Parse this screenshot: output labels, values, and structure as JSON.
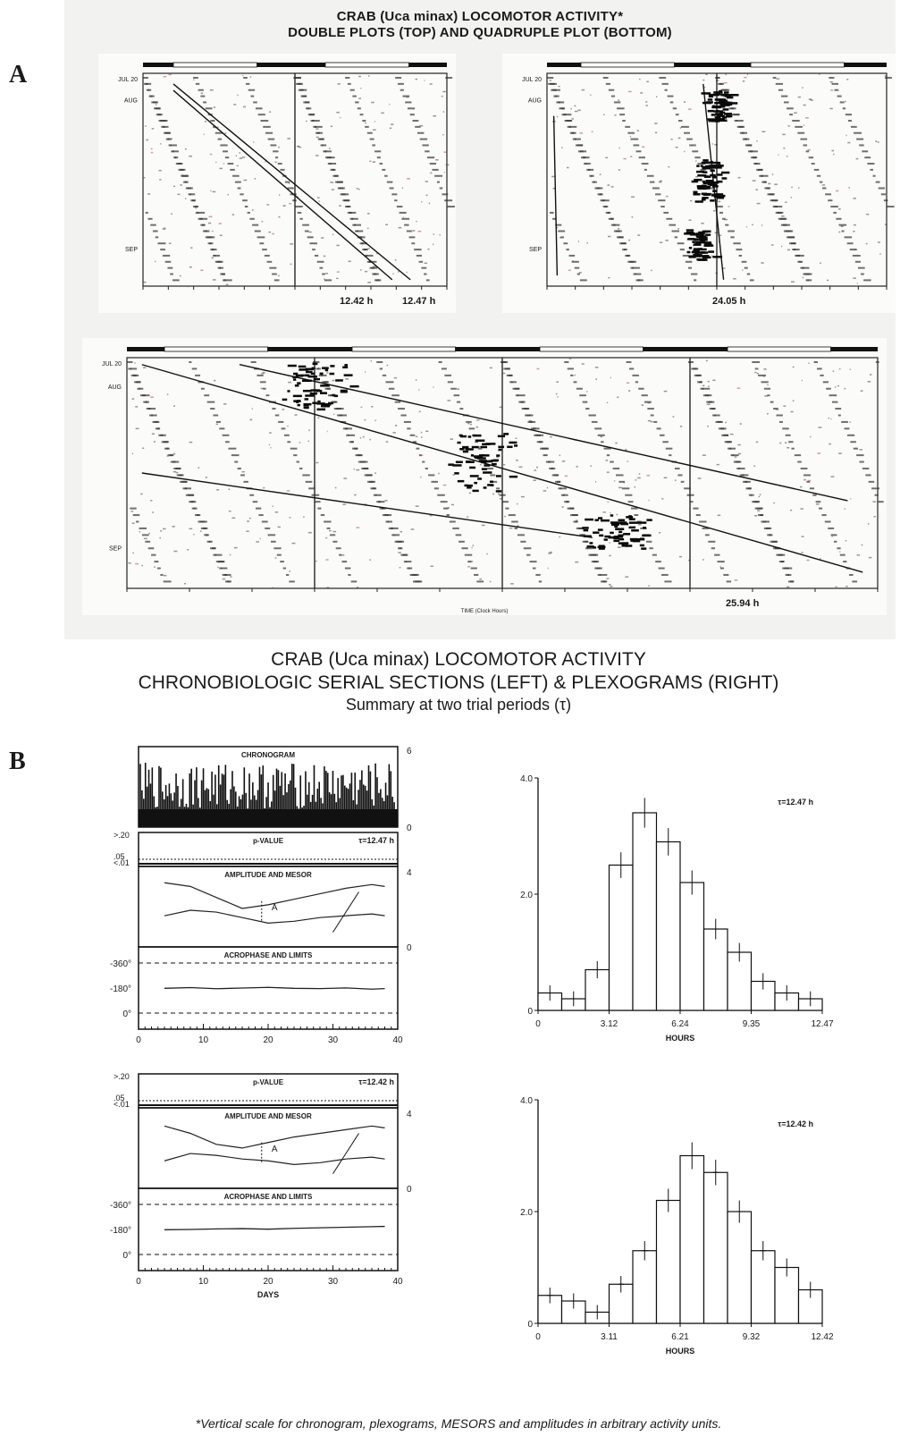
{
  "panel_labels": {
    "a": "A",
    "b": "B"
  },
  "part_a": {
    "title_line1": "CRAB (Uca minax) LOCOMOTOR ACTIVITY*",
    "title_line2": "DOUBLE PLOTS (TOP) AND QUADRUPLE PLOT (BOTTOM)",
    "x_axis_label": "TIME (Clock Hours)",
    "y_tick_labels": [
      "JUL 20",
      "AUG",
      "SEP"
    ],
    "period_labels": {
      "plot1_a": "12.42 h",
      "plot1_b": "12.47 h",
      "plot2": "24.05 h",
      "plot3": "25.94 h"
    }
  },
  "part_b": {
    "title_line1": "CRAB (Uca minax) LOCOMOTOR ACTIVITY",
    "title_line2": "CHRONOBIOLOGIC SERIAL SECTIONS (LEFT) & PLEXOGRAMS (RIGHT)",
    "title_line3": "Summary at two trial periods (τ)"
  },
  "footnote": "*Vertical scale for chronogram, plexograms, MESORS and amplitudes in arbitrary activity units.",
  "chart_data": [
    {
      "type": "line",
      "name": "serial section τ=12.47 h",
      "title": "",
      "panels": {
        "chronogram": {
          "label": "CHRONOGRAM",
          "ylim": [
            0,
            6
          ],
          "right_ticks": [
            "6",
            "0"
          ]
        },
        "p_value": {
          "label": "p-VALUE",
          "tau_label": "τ=12.47 h",
          "left_ticks": [
            ">.20",
            ".05",
            "<.01"
          ]
        },
        "amplitude_mesor": {
          "label": "AMPLITUDE AND MESOR",
          "ylim": [
            0,
            4
          ],
          "right_ticks": [
            "4",
            "0"
          ],
          "annotation": "A",
          "days": [
            4,
            8,
            12,
            16,
            20,
            24,
            28,
            32,
            36,
            38
          ],
          "mesor_upper": [
            3.5,
            3.3,
            2.7,
            2.1,
            2.3,
            2.6,
            2.9,
            3.2,
            3.4,
            3.3
          ],
          "amplitude_lower": [
            1.7,
            2.0,
            1.9,
            1.6,
            1.3,
            1.4,
            1.6,
            1.7,
            1.8,
            1.7
          ]
        },
        "acrophase": {
          "label": "ACROPHASE AND LIMITS",
          "ticks": [
            "-360°",
            "-180°",
            "0°"
          ],
          "days": [
            4,
            8,
            12,
            16,
            20,
            24,
            28,
            32,
            36,
            38
          ],
          "acrophase_deg": [
            -178,
            -183,
            -175,
            -180,
            -185,
            -178,
            -176,
            -181,
            -172,
            -176
          ]
        }
      },
      "x_ticks": [
        0,
        10,
        20,
        30,
        40
      ],
      "xlabel": "DAYS"
    },
    {
      "type": "bar",
      "name": "plexogram τ=12.47 h",
      "tau_label": "τ=12.47 h",
      "x_tick_labels": [
        "0",
        "3.12",
        "6.24",
        "9.35",
        "12.47"
      ],
      "xlabel": "HOURS",
      "y_tick_labels": [
        "0",
        "2.0",
        "4.0"
      ],
      "ylim": [
        0,
        4
      ],
      "values": [
        0.3,
        0.2,
        0.7,
        2.5,
        3.4,
        2.9,
        2.2,
        1.4,
        1.0,
        0.5,
        0.3,
        0.2
      ]
    },
    {
      "type": "line",
      "name": "serial section τ=12.42 h",
      "title": "",
      "panels": {
        "p_value": {
          "label": "p-VALUE",
          "tau_label": "τ=12.42 h",
          "left_ticks": [
            ">.20",
            ".05",
            "<.01"
          ]
        },
        "amplitude_mesor": {
          "label": "AMPLITUDE AND MESOR",
          "ylim": [
            0,
            4
          ],
          "right_ticks": [
            "4",
            "0"
          ],
          "annotation": "A",
          "days": [
            4,
            8,
            12,
            16,
            20,
            24,
            28,
            32,
            36,
            38
          ],
          "mesor_upper": [
            3.4,
            3.0,
            2.4,
            2.2,
            2.5,
            2.8,
            3.0,
            3.2,
            3.4,
            3.3
          ],
          "amplitude_lower": [
            1.5,
            1.9,
            1.8,
            1.6,
            1.5,
            1.3,
            1.4,
            1.6,
            1.7,
            1.6
          ]
        },
        "acrophase": {
          "label": "ACROPHASE AND LIMITS",
          "ticks": [
            "-360°",
            "-180°",
            "0°"
          ],
          "days": [
            4,
            8,
            12,
            16,
            20,
            24,
            28,
            32,
            36,
            38
          ],
          "acrophase_deg": [
            -178,
            -180,
            -184,
            -186,
            -182,
            -188,
            -192,
            -196,
            -200,
            -202
          ]
        }
      },
      "x_ticks": [
        0,
        10,
        20,
        30,
        40
      ],
      "xlabel": "DAYS"
    },
    {
      "type": "bar",
      "name": "plexogram τ=12.42 h",
      "tau_label": "τ=12.42 h",
      "x_tick_labels": [
        "0",
        "3.11",
        "6.21",
        "9.32",
        "12.42"
      ],
      "xlabel": "HOURS",
      "y_tick_labels": [
        "0",
        "2.0",
        "4.0"
      ],
      "ylim": [
        0,
        4
      ],
      "values": [
        0.5,
        0.4,
        0.2,
        0.7,
        1.3,
        2.2,
        3.0,
        2.7,
        2.0,
        1.3,
        1.0,
        0.6
      ]
    }
  ]
}
